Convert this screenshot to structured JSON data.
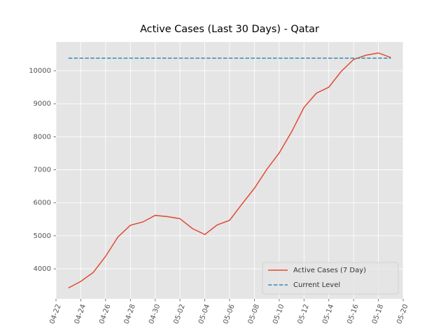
{
  "chart_data": {
    "type": "line",
    "title": "Active Cases (Last 30 Days) - Qatar",
    "x": [
      "04-23",
      "04-24",
      "04-25",
      "04-26",
      "04-27",
      "04-28",
      "04-29",
      "04-30",
      "05-01",
      "05-02",
      "05-03",
      "05-04",
      "05-05",
      "05-06",
      "05-07",
      "05-08",
      "05-09",
      "05-10",
      "05-11",
      "05-12",
      "05-13",
      "05-14",
      "05-15",
      "05-16",
      "05-17",
      "05-18",
      "05-19"
    ],
    "series": [
      {
        "name": "Active Cases (7 Day)",
        "color": "#E24A33",
        "dash": false,
        "values": [
          3420,
          3620,
          3890,
          4380,
          4970,
          5320,
          5420,
          5620,
          5580,
          5520,
          5220,
          5040,
          5330,
          5470,
          5960,
          6440,
          7010,
          7510,
          8150,
          8890,
          9320,
          9500,
          9980,
          10340,
          10470,
          10540,
          10400
        ]
      },
      {
        "name": "Current Level",
        "color": "#348ABD",
        "dash": true,
        "values": [
          10380,
          10380,
          10380,
          10380,
          10380,
          10380,
          10380,
          10380,
          10380,
          10380,
          10380,
          10380,
          10380,
          10380,
          10380,
          10380,
          10380,
          10380,
          10380,
          10380,
          10380,
          10380,
          10380,
          10380,
          10380,
          10380,
          10380
        ]
      }
    ],
    "xlim": [
      "04-22",
      "05-20"
    ],
    "xticks": [
      "04-22",
      "04-24",
      "04-26",
      "04-28",
      "04-30",
      "05-02",
      "05-04",
      "05-06",
      "05-08",
      "05-10",
      "05-12",
      "05-14",
      "05-16",
      "05-18",
      "05-20"
    ],
    "ylim": [
      3090,
      10870
    ],
    "yticks": [
      4000,
      5000,
      6000,
      7000,
      8000,
      9000,
      10000
    ],
    "grid": true,
    "legend": "lower right"
  }
}
